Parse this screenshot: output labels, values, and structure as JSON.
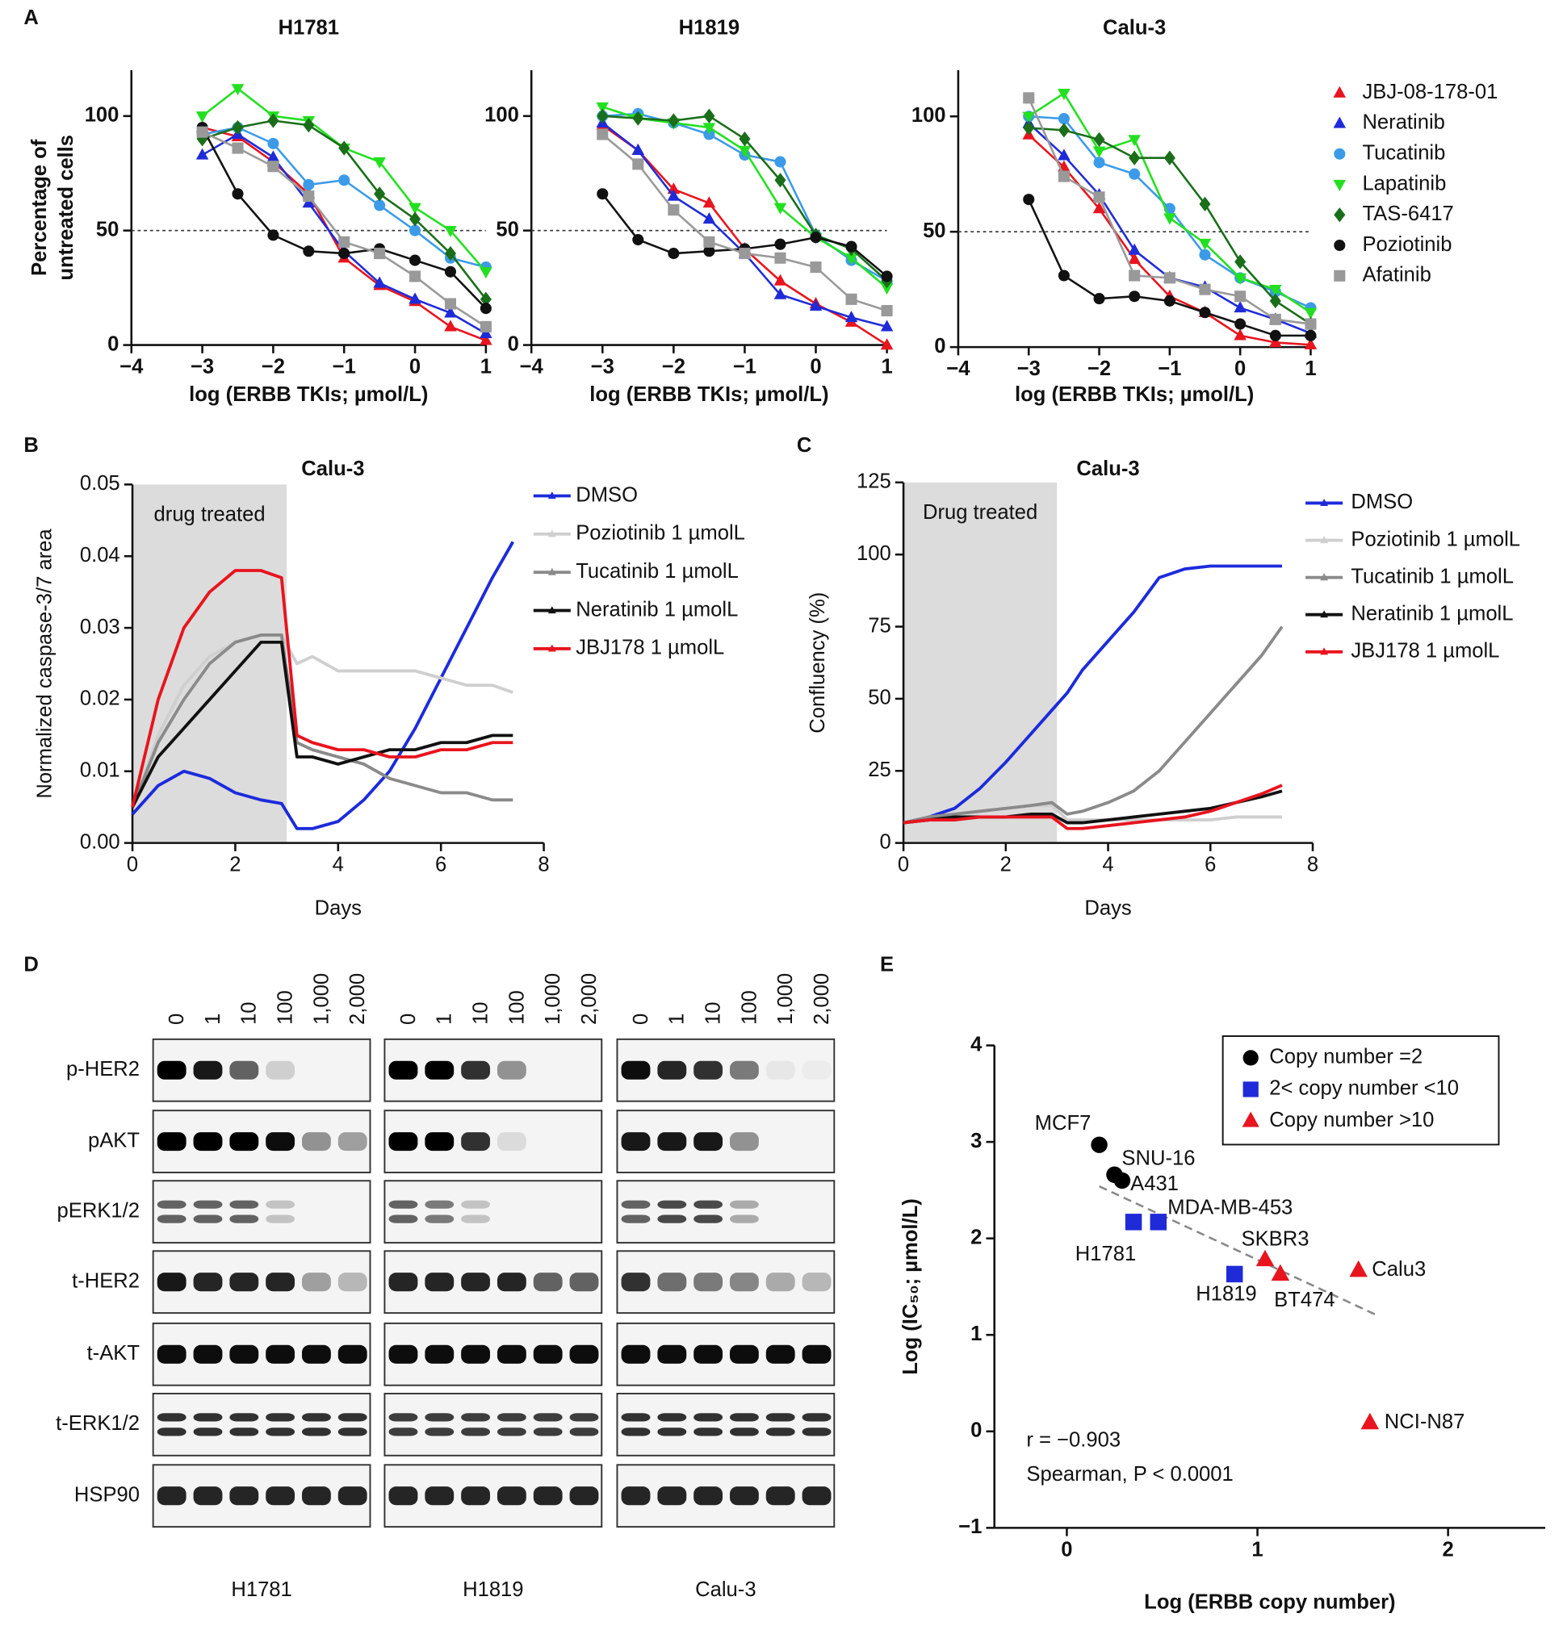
{
  "panel_labels": [
    "A",
    "B",
    "C",
    "D",
    "E"
  ],
  "chart_data": [
    {
      "type": "line",
      "title": "H1781",
      "ylabel": [
        "Percentage of",
        "untreated cells"
      ],
      "xlabel": "log (ERBB TKIs; µmol/L)",
      "x": [
        -3,
        -2.5,
        -2,
        -1.5,
        -1,
        -0.5,
        0,
        0.5,
        1
      ],
      "xlim": [
        -4,
        1
      ],
      "ylim": [
        0,
        120
      ],
      "xticks": [
        {
          "value": -4,
          "label": "−4"
        },
        {
          "value": -3,
          "label": "−3"
        },
        {
          "value": -2,
          "label": "−2"
        },
        {
          "value": -1,
          "label": "−1"
        },
        0,
        1
      ],
      "yticks": [
        0,
        50,
        100
      ],
      "reference_line": 50,
      "series": [
        {
          "color": "#e8141e",
          "marker": "triangle",
          "values": [
            95,
            91,
            80,
            66,
            38,
            26,
            19,
            8,
            2
          ]
        },
        {
          "color": "#1f2bd8",
          "marker": "triangle",
          "values": [
            83,
            92,
            82,
            62,
            41,
            27,
            20,
            14,
            5
          ]
        },
        {
          "color": "#3b9be8",
          "marker": "circle",
          "values": [
            92,
            95,
            88,
            70,
            72,
            61,
            50,
            38,
            34
          ]
        },
        {
          "color": "#22e020",
          "marker": "triangle-down",
          "values": [
            100,
            112,
            100,
            98,
            86,
            80,
            60,
            50,
            32
          ]
        },
        {
          "color": "#1a6e1a",
          "marker": "diamond",
          "values": [
            90,
            95,
            98,
            96,
            86,
            66,
            55,
            40,
            20
          ]
        },
        {
          "color": "#111111",
          "marker": "circle",
          "values": [
            95,
            66,
            48,
            41,
            40,
            42,
            37,
            32,
            16
          ]
        },
        {
          "color": "#999999",
          "marker": "square",
          "values": [
            93,
            86,
            78,
            65,
            45,
            40,
            30,
            18,
            8
          ]
        }
      ]
    },
    {
      "type": "line",
      "title": "H1819",
      "xlabel": "log (ERBB TKIs; µmol/L)",
      "x": [
        -3,
        -2.5,
        -2,
        -1.5,
        -1,
        -0.5,
        0,
        0.5,
        1
      ],
      "xlim": [
        -4,
        1
      ],
      "ylim": [
        0,
        120
      ],
      "xticks": [
        {
          "value": -4,
          "label": "−4"
        },
        {
          "value": -3,
          "label": "−3"
        },
        {
          "value": -2,
          "label": "−2"
        },
        {
          "value": -1,
          "label": "−1"
        },
        0,
        1
      ],
      "yticks": [
        0,
        50,
        100
      ],
      "reference_line": 50,
      "series": [
        {
          "color": "#e8141e",
          "marker": "triangle",
          "values": [
            96,
            85,
            68,
            62,
            42,
            28,
            18,
            10,
            0
          ]
        },
        {
          "color": "#1f2bd8",
          "marker": "triangle",
          "values": [
            97,
            85,
            65,
            55,
            40,
            22,
            17,
            12,
            8
          ]
        },
        {
          "color": "#3b9be8",
          "marker": "circle",
          "values": [
            100,
            101,
            97,
            92,
            83,
            80,
            48,
            37,
            28
          ]
        },
        {
          "color": "#22e020",
          "marker": "triangle-down",
          "values": [
            104,
            99,
            97,
            95,
            85,
            60,
            47,
            38,
            25
          ]
        },
        {
          "color": "#1a6e1a",
          "marker": "diamond",
          "values": [
            100,
            99,
            98,
            100,
            90,
            72,
            48,
            42,
            28
          ]
        },
        {
          "color": "#111111",
          "marker": "circle",
          "values": [
            66,
            46,
            40,
            41,
            42,
            44,
            47,
            43,
            30
          ]
        },
        {
          "color": "#999999",
          "marker": "square",
          "values": [
            92,
            79,
            59,
            45,
            40,
            38,
            34,
            20,
            15
          ]
        }
      ]
    },
    {
      "type": "line",
      "title": "Calu-3",
      "xlabel": "log (ERBB TKIs; µmol/L)",
      "legend": "right",
      "x": [
        -3,
        -2.5,
        -2,
        -1.5,
        -1,
        -0.5,
        0,
        0.5,
        1
      ],
      "xlim": [
        -4,
        1
      ],
      "ylim": [
        0,
        120
      ],
      "xticks": [
        {
          "value": -4,
          "label": "−4"
        },
        {
          "value": -3,
          "label": "−3"
        },
        {
          "value": -2,
          "label": "−2"
        },
        {
          "value": -1,
          "label": "−1"
        },
        0,
        1
      ],
      "yticks": [
        0,
        50,
        100
      ],
      "reference_line": 50,
      "series": [
        {
          "name": "JBJ-08-178-01",
          "color": "#e8141e",
          "marker": "triangle",
          "values": [
            92,
            78,
            60,
            38,
            22,
            15,
            5,
            2,
            1
          ]
        },
        {
          "name": "Neratinib",
          "color": "#1f2bd8",
          "marker": "triangle",
          "values": [
            97,
            83,
            66,
            42,
            30,
            26,
            17,
            12,
            6
          ]
        },
        {
          "name": "Tucatinib",
          "color": "#3b9be8",
          "marker": "circle",
          "values": [
            100,
            99,
            80,
            75,
            60,
            40,
            30,
            24,
            17
          ]
        },
        {
          "name": "Lapatinib",
          "color": "#22e020",
          "marker": "triangle-down",
          "values": [
            100,
            110,
            85,
            90,
            56,
            45,
            30,
            25,
            15
          ]
        },
        {
          "name": "TAS-6417",
          "color": "#1a6e1a",
          "marker": "diamond",
          "values": [
            95,
            94,
            90,
            82,
            82,
            62,
            37,
            20,
            10
          ]
        },
        {
          "name": "Poziotinib",
          "color": "#111111",
          "marker": "circle",
          "values": [
            64,
            31,
            21,
            22,
            20,
            15,
            10,
            5,
            5
          ]
        },
        {
          "name": "Afatinib",
          "color": "#999999",
          "marker": "square",
          "values": [
            108,
            74,
            65,
            31,
            30,
            25,
            22,
            12,
            10
          ]
        }
      ]
    },
    {
      "type": "line",
      "title": "Calu-3",
      "ylabel": [
        "Normalized caspase-3/7 area"
      ],
      "xlabel": "Days",
      "legend": "right",
      "shade": [
        0,
        3
      ],
      "shade_label": "drug treated",
      "x": [
        0,
        0.5,
        1,
        1.5,
        2,
        2.5,
        2.9,
        3.2,
        3.5,
        4,
        4.5,
        5,
        5.5,
        6,
        6.5,
        7,
        7.4
      ],
      "xlim": [
        0,
        8
      ],
      "ylim": [
        0,
        0.05
      ],
      "xticks": [
        0,
        2,
        4,
        6,
        8
      ],
      "yticks": [
        {
          "value": 0,
          "label": "0.00"
        },
        0.01,
        0.02,
        0.03,
        0.04,
        0.05
      ],
      "series": [
        {
          "name": "DMSO",
          "color": "#1c2bdb",
          "values": [
            0.004,
            0.008,
            0.01,
            0.009,
            0.007,
            0.006,
            0.0055,
            0.002,
            0.002,
            0.003,
            0.006,
            0.01,
            0.016,
            0.023,
            0.03,
            0.037,
            0.042
          ]
        },
        {
          "name": "Poziotinib 1 µmolL",
          "color": "#cfcfcf",
          "values": [
            0.005,
            0.015,
            0.022,
            0.026,
            0.028,
            0.029,
            0.029,
            0.025,
            0.026,
            0.024,
            0.024,
            0.024,
            0.024,
            0.023,
            0.022,
            0.022,
            0.021
          ]
        },
        {
          "name": "Tucatinib 1 µmolL",
          "color": "#8a8a8a",
          "values": [
            0.005,
            0.014,
            0.02,
            0.025,
            0.028,
            0.029,
            0.029,
            0.014,
            0.013,
            0.012,
            0.011,
            0.009,
            0.008,
            0.007,
            0.007,
            0.006,
            0.006
          ]
        },
        {
          "name": "Neratinib 1 µmolL",
          "color": "#111111",
          "values": [
            0.005,
            0.012,
            0.016,
            0.02,
            0.024,
            0.028,
            0.028,
            0.012,
            0.012,
            0.011,
            0.012,
            0.013,
            0.013,
            0.014,
            0.014,
            0.015,
            0.015
          ]
        },
        {
          "name": "JBJ178 1 µmolL",
          "color": "#e8141e",
          "values": [
            0.005,
            0.02,
            0.03,
            0.035,
            0.038,
            0.038,
            0.037,
            0.015,
            0.014,
            0.013,
            0.013,
            0.012,
            0.012,
            0.013,
            0.013,
            0.014,
            0.014
          ]
        }
      ]
    },
    {
      "type": "line",
      "title": "Calu-3",
      "ylabel": [
        "Confluency (%)"
      ],
      "xlabel": "Days",
      "legend": "right",
      "shade": [
        0,
        3
      ],
      "shade_label": "Drug treated",
      "x": [
        0,
        0.5,
        1,
        1.5,
        2,
        2.5,
        2.9,
        3.2,
        3.5,
        4,
        4.5,
        5,
        5.5,
        6,
        6.5,
        7,
        7.4
      ],
      "xlim": [
        0,
        8
      ],
      "ylim": [
        0,
        125
      ],
      "xticks": [
        0,
        2,
        4,
        6,
        8
      ],
      "yticks": [
        0,
        25,
        50,
        75,
        100,
        125
      ],
      "series": [
        {
          "name": "DMSO",
          "color": "#1c2bdb",
          "values": [
            7,
            9,
            12,
            19,
            28,
            38,
            46,
            52,
            60,
            70,
            80,
            92,
            95,
            96,
            96,
            96,
            96
          ]
        },
        {
          "name": "Poziotinib 1 µmolL",
          "color": "#cfcfcf",
          "values": [
            7,
            9,
            10,
            11,
            12,
            13,
            13,
            8,
            8,
            8,
            8,
            8,
            8,
            8,
            9,
            9,
            9
          ]
        },
        {
          "name": "Tucatinib 1 µmolL",
          "color": "#8a8a8a",
          "values": [
            7,
            9,
            10,
            11,
            12,
            13,
            14,
            10,
            11,
            14,
            18,
            25,
            35,
            45,
            55,
            65,
            75
          ]
        },
        {
          "name": "Neratinib 1 µmolL",
          "color": "#111111",
          "values": [
            7,
            8,
            9,
            9,
            9,
            10,
            10,
            7,
            7,
            8,
            9,
            10,
            11,
            12,
            14,
            16,
            18
          ]
        },
        {
          "name": "JBJ178 1 µmolL",
          "color": "#e8141e",
          "values": [
            7,
            8,
            8,
            9,
            9,
            9,
            9,
            5,
            5,
            6,
            7,
            8,
            9,
            11,
            14,
            17,
            20
          ]
        }
      ]
    },
    {
      "type": "scatter",
      "ylabel": [
        "Log (IC₅₀; µmol/L)"
      ],
      "xlabel": "Log (ERBB copy number)",
      "legend": "top-right",
      "xlim": [
        -0.38,
        2.51
      ],
      "ylim": [
        -1,
        4
      ],
      "xticks": [
        0,
        1,
        2
      ],
      "yticks": [
        {
          "value": -1,
          "label": "−1"
        },
        0,
        1,
        2,
        3,
        4
      ],
      "series": [
        {
          "name": "Copy number =2",
          "color": "#000000",
          "marker": "circle",
          "x": [
            0.17,
            0.25,
            0.29
          ],
          "values": [
            2.97,
            2.66,
            2.6
          ],
          "point_labels": [
            "MCF7",
            "SNU-16",
            "A431"
          ]
        },
        {
          "name": "2< copy number <10",
          "color": "#1f2bd8",
          "marker": "square",
          "x": [
            0.35,
            0.48,
            0.88
          ],
          "values": [
            2.17,
            2.17,
            1.63
          ],
          "point_labels": [
            "H1781",
            "MDA-MB-453",
            "H1819"
          ]
        },
        {
          "name": "Copy number >10",
          "color": "#e8141e",
          "marker": "triangle",
          "x": [
            1.04,
            1.12,
            1.53,
            1.59
          ],
          "values": [
            1.78,
            1.63,
            1.67,
            0.09
          ],
          "point_labels": [
            "SKBR3",
            "BT474",
            "Calu3",
            "NCI-N87"
          ]
        }
      ],
      "trendline": {
        "x": [
          0.17,
          1.62
        ],
        "values": [
          2.54,
          1.21
        ]
      },
      "annotations": [
        "r = −0.903",
        "Spearman, P < 0.0001"
      ]
    }
  ],
  "blot": {
    "doses": [
      "0",
      "1",
      "10",
      "100",
      "1,000",
      "2,000"
    ],
    "rows": [
      "p-HER2",
      "pAKT",
      "pERK1/2",
      "t-HER2",
      "t-AKT",
      "t-ERK1/2",
      "HSP90"
    ],
    "cell_lines": [
      "H1781",
      "H1819",
      "Calu-3"
    ]
  }
}
